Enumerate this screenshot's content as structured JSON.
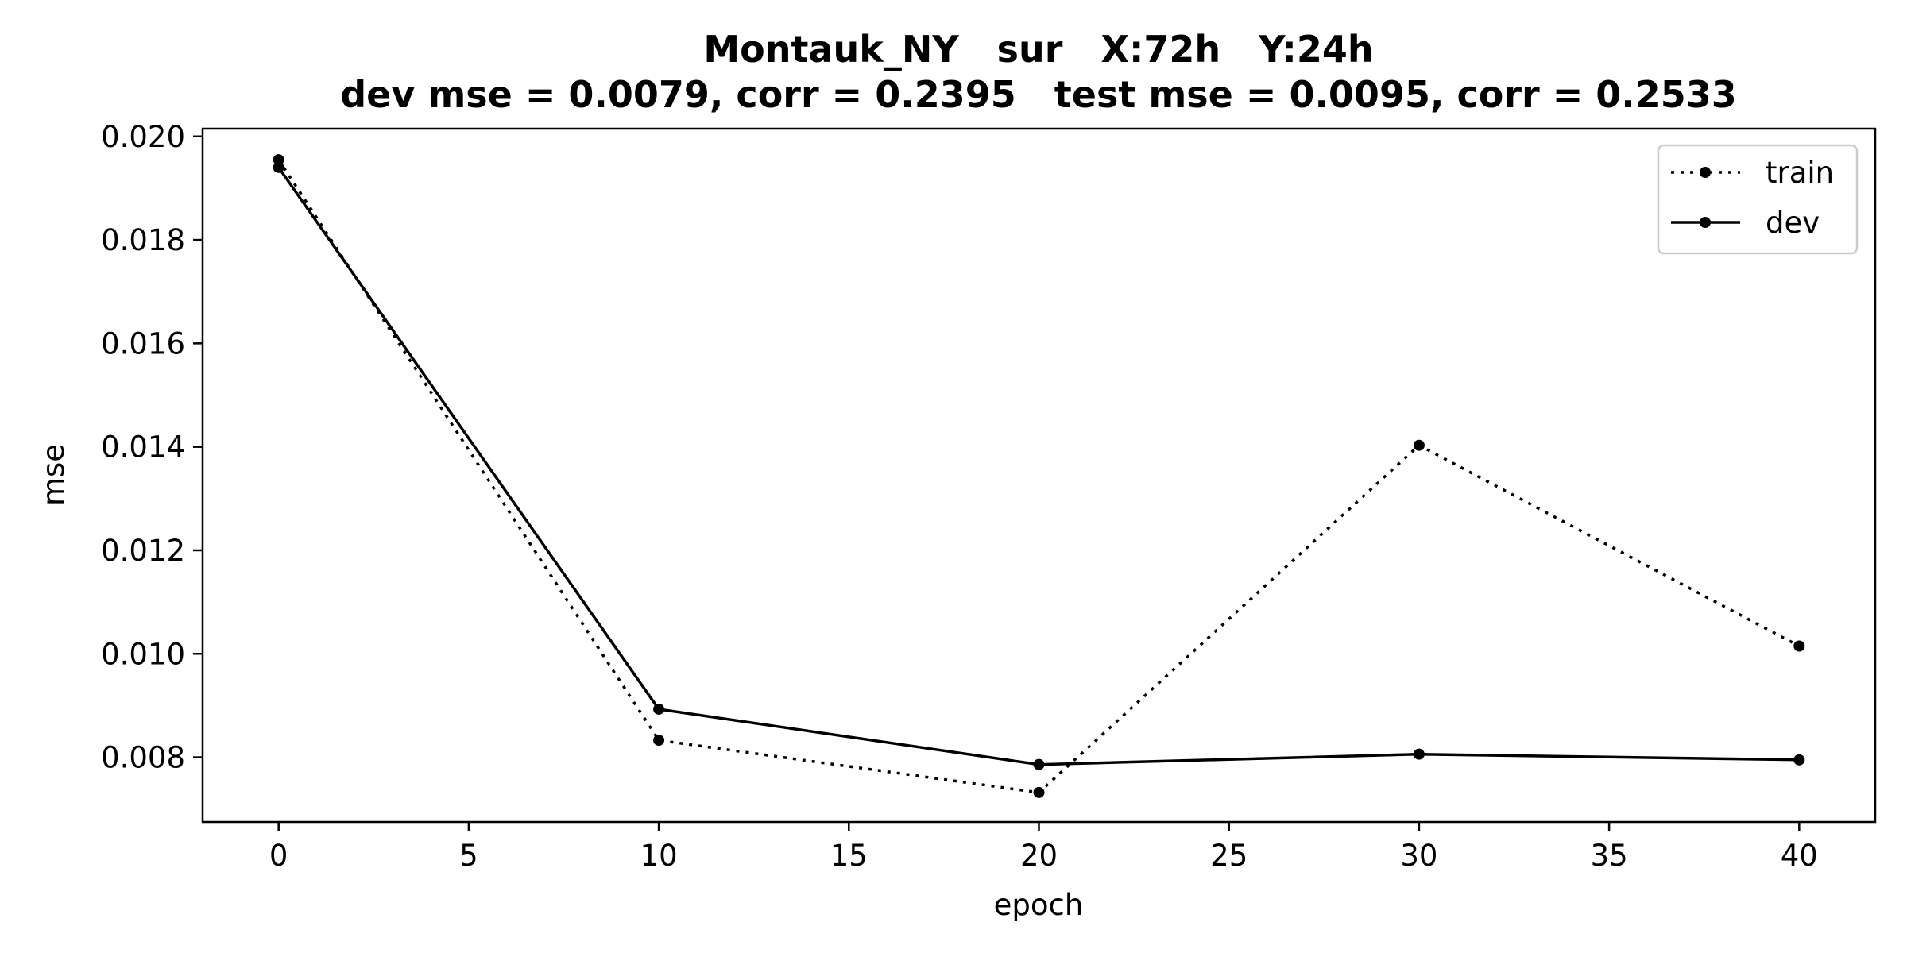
{
  "chart_data": {
    "type": "line",
    "title_line1": "Montauk_NY   sur   X:72h   Y:24h",
    "title_line2": "dev mse = 0.0079, corr = 0.2395   test mse = 0.0095, corr = 0.2533",
    "xlabel": "epoch",
    "ylabel": "mse",
    "xlim": [
      -2,
      42
    ],
    "ylim": [
      0.00675,
      0.02015
    ],
    "xticks": [
      0,
      5,
      10,
      15,
      20,
      25,
      30,
      35,
      40
    ],
    "yticks": [
      0.008,
      0.01,
      0.012,
      0.014,
      0.016,
      0.018,
      0.02
    ],
    "ytick_labels": [
      "0.008",
      "0.010",
      "0.012",
      "0.014",
      "0.016",
      "0.018",
      "0.020"
    ],
    "grid": false,
    "legend_position": "top-right",
    "series": [
      {
        "name": "train",
        "line_style": "dotted",
        "color": "#000000",
        "x": [
          0,
          10,
          20,
          30,
          40
        ],
        "y": [
          0.01955,
          0.00833,
          0.00732,
          0.01403,
          0.01015
        ]
      },
      {
        "name": "dev",
        "line_style": "solid",
        "color": "#000000",
        "x": [
          0,
          10,
          20,
          30,
          40
        ],
        "y": [
          0.0194,
          0.00893,
          0.00786,
          0.00806,
          0.00795
        ]
      }
    ]
  }
}
